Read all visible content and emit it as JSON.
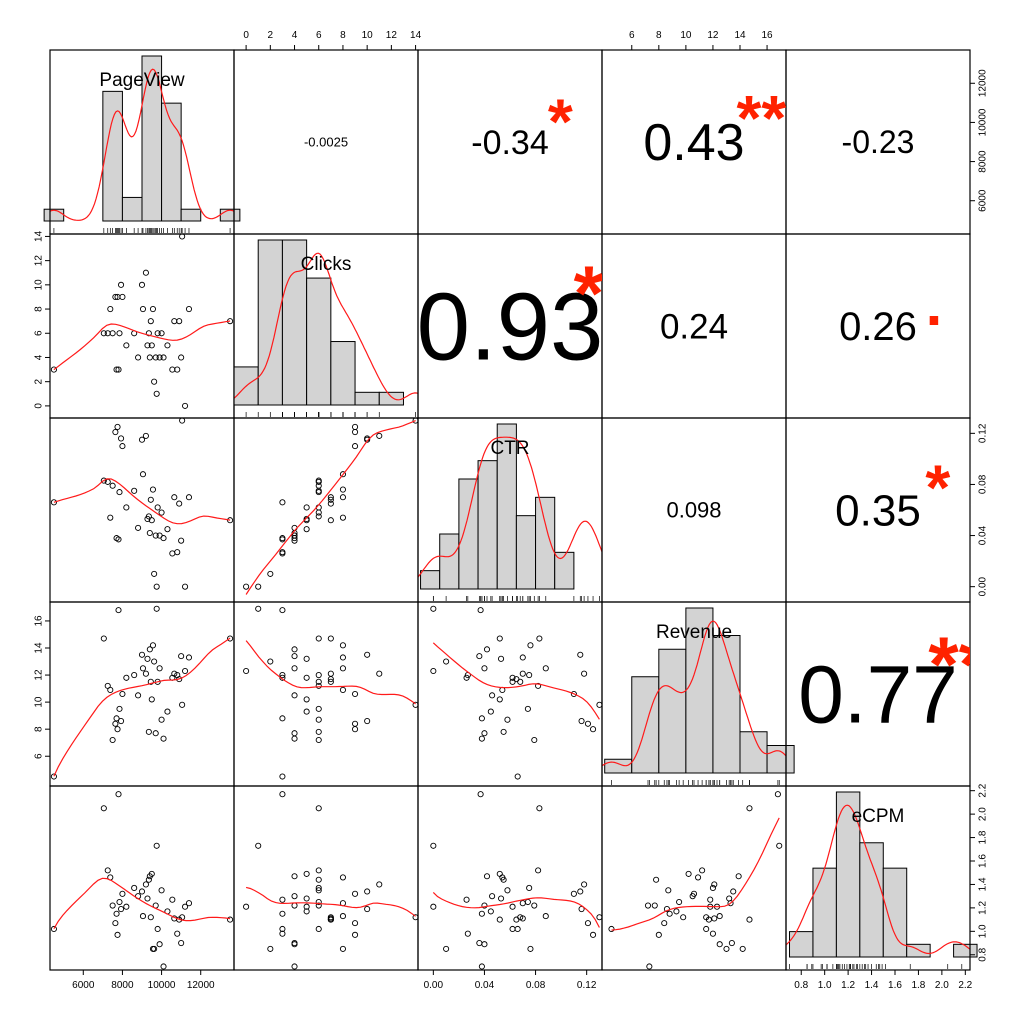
{
  "chart_data": {
    "type": "scatter",
    "title": "",
    "variables": [
      "PageView",
      "Clicks",
      "CTR",
      "Revenue",
      "eCPM"
    ],
    "tick_labels": {
      "PageView": [
        "6000",
        "8000",
        "10000",
        "12000"
      ],
      "Clicks": [
        "0",
        "2",
        "4",
        "6",
        "8",
        "10",
        "12",
        "14"
      ],
      "CTR": [
        "0.00",
        "0.04",
        "0.08",
        "0.12"
      ],
      "Revenue": [
        "6",
        "8",
        "10",
        "12",
        "14",
        "16"
      ],
      "eCPM": [
        "0.8",
        "1.0",
        "1.2",
        "1.4",
        "1.6",
        "1.8",
        "2.0",
        "2.2"
      ],
      "CTR_vertical": [
        "0.00",
        "0.04",
        "0.08",
        "0.12"
      ],
      "eCPM_vertical": [
        "0.8",
        "1.0",
        "1.2",
        "1.4",
        "1.6",
        "1.8",
        "2.0",
        "2.2"
      ],
      "PageView_vertical": [
        "6000",
        "8000",
        "10000",
        "12000"
      ]
    },
    "correlations": [
      {
        "row": 0,
        "col": 1,
        "label": "-0.0025",
        "stars": ""
      },
      {
        "row": 0,
        "col": 2,
        "label": "-0.34",
        "stars": "*"
      },
      {
        "row": 0,
        "col": 3,
        "label": "0.43",
        "stars": "**"
      },
      {
        "row": 0,
        "col": 4,
        "label": "-0.23",
        "stars": ""
      },
      {
        "row": 1,
        "col": 2,
        "label": "0.93",
        "stars": "***"
      },
      {
        "row": 1,
        "col": 3,
        "label": "0.24",
        "stars": ""
      },
      {
        "row": 1,
        "col": 4,
        "label": "0.26",
        "stars": "."
      },
      {
        "row": 2,
        "col": 3,
        "label": "0.098",
        "stars": ""
      },
      {
        "row": 2,
        "col": 4,
        "label": "0.35",
        "stars": "*"
      },
      {
        "row": 3,
        "col": 4,
        "label": "0.77",
        "stars": "***"
      }
    ],
    "histograms": {
      "PageView": {
        "breaks": [
          4000,
          5000,
          6000,
          7000,
          8000,
          9000,
          10000,
          11000,
          12000,
          13000,
          14000
        ],
        "counts": [
          1,
          0,
          0,
          11,
          2,
          14,
          10,
          1,
          0,
          1
        ]
      },
      "Clicks": {
        "breaks": [
          -1,
          1,
          3,
          5,
          7,
          9,
          11,
          13
        ],
        "counts": [
          3,
          13,
          13,
          10,
          5,
          1,
          1
        ]
      },
      "CTR": {
        "breaks": [
          -0.01,
          0.005,
          0.02,
          0.035,
          0.05,
          0.065,
          0.08,
          0.095,
          0.11
        ],
        "counts": [
          1,
          3,
          6,
          7,
          9,
          4,
          5,
          2
        ]
      },
      "Revenue": {
        "breaks": [
          4,
          6,
          8,
          10,
          12,
          14,
          16,
          18
        ],
        "counts": [
          1,
          7,
          9,
          12,
          10,
          3,
          2
        ]
      },
      "eCPM": {
        "breaks": [
          0.7,
          0.9,
          1.1,
          1.3,
          1.5,
          1.7,
          1.9,
          2.1,
          2.3
        ],
        "counts": [
          2,
          7,
          13,
          9,
          7,
          1,
          0,
          1
        ]
      }
    },
    "observations": [
      {
        "PageView": 4500,
        "Clicks": 3,
        "CTR": 0.066,
        "Revenue": 4.5,
        "eCPM": 1.02
      },
      {
        "PageView": 7050,
        "Clicks": 6,
        "CTR": 0.083,
        "Revenue": 14.7,
        "eCPM": 2.05
      },
      {
        "PageView": 7250,
        "Clicks": 6,
        "CTR": 0.082,
        "Revenue": 11.2,
        "eCPM": 1.52
      },
      {
        "PageView": 7380,
        "Clicks": 8,
        "CTR": 0.054,
        "Revenue": 10.9,
        "eCPM": 1.46
      },
      {
        "PageView": 7500,
        "Clicks": 6,
        "CTR": 0.079,
        "Revenue": 7.2,
        "eCPM": 1.22
      },
      {
        "PageView": 7640,
        "Clicks": 9,
        "CTR": 0.121,
        "Revenue": 8.4,
        "eCPM": 1.07
      },
      {
        "PageView": 7700,
        "Clicks": 3,
        "CTR": 0.038,
        "Revenue": 8.8,
        "eCPM": 1.15
      },
      {
        "PageView": 7750,
        "Clicks": 9,
        "CTR": 0.125,
        "Revenue": 8.0,
        "eCPM": 0.97
      },
      {
        "PageView": 7800,
        "Clicks": 3,
        "CTR": 0.037,
        "Revenue": 16.8,
        "eCPM": 2.17
      },
      {
        "PageView": 7850,
        "Clicks": 6,
        "CTR": 0.074,
        "Revenue": 9.5,
        "eCPM": 1.25
      },
      {
        "PageView": 7930,
        "Clicks": 10,
        "CTR": 0.116,
        "Revenue": 8.6,
        "eCPM": 1.19
      },
      {
        "PageView": 8000,
        "Clicks": 9,
        "CTR": 0.11,
        "Revenue": 10.6,
        "eCPM": 1.32
      },
      {
        "PageView": 8200,
        "Clicks": 5,
        "CTR": 0.062,
        "Revenue": 11.8,
        "eCPM": 1.21
      },
      {
        "PageView": 8600,
        "Clicks": 6,
        "CTR": 0.075,
        "Revenue": 12.0,
        "eCPM": 1.37
      },
      {
        "PageView": 8800,
        "Clicks": 4,
        "CTR": 0.046,
        "Revenue": 10.5,
        "eCPM": 1.3
      },
      {
        "PageView": 9000,
        "Clicks": 10,
        "CTR": 0.115,
        "Revenue": 13.5,
        "eCPM": 1.34
      },
      {
        "PageView": 9050,
        "Clicks": 8,
        "CTR": 0.088,
        "Revenue": 12.5,
        "eCPM": 1.13
      },
      {
        "PageView": 9200,
        "Clicks": 11,
        "CTR": 0.118,
        "Revenue": 12.1,
        "eCPM": 1.4
      },
      {
        "PageView": 9280,
        "Clicks": 5,
        "CTR": 0.053,
        "Revenue": 13.2,
        "eCPM": 1.28
      },
      {
        "PageView": 9350,
        "Clicks": 6,
        "CTR": 0.055,
        "Revenue": 7.8,
        "eCPM": 1.44
      },
      {
        "PageView": 9400,
        "Clicks": 4,
        "CTR": 0.042,
        "Revenue": 13.9,
        "eCPM": 1.47
      },
      {
        "PageView": 9450,
        "Clicks": 7,
        "CTR": 0.068,
        "Revenue": 11.5,
        "eCPM": 1.12
      },
      {
        "PageView": 9500,
        "Clicks": 5,
        "CTR": 0.052,
        "Revenue": 10.2,
        "eCPM": 1.49
      },
      {
        "PageView": 9560,
        "Clicks": 8,
        "CTR": 0.076,
        "Revenue": 14.2,
        "eCPM": 0.85
      },
      {
        "PageView": 9620,
        "Clicks": 2,
        "CTR": 0.01,
        "Revenue": 13.0,
        "eCPM": 0.85
      },
      {
        "PageView": 9700,
        "Clicks": 4,
        "CTR": 0.04,
        "Revenue": 7.7,
        "eCPM": 1.22
      },
      {
        "PageView": 9750,
        "Clicks": 1,
        "CTR": 0.0,
        "Revenue": 16.9,
        "eCPM": 1.73
      },
      {
        "PageView": 9800,
        "Clicks": 6,
        "CTR": 0.062,
        "Revenue": 11.5,
        "eCPM": 1.02
      },
      {
        "PageView": 9900,
        "Clicks": 4,
        "CTR": 0.04,
        "Revenue": 12.5,
        "eCPM": 0.89
      },
      {
        "PageView": 10000,
        "Clicks": 6,
        "CTR": 0.058,
        "Revenue": 8.7,
        "eCPM": 1.35
      },
      {
        "PageView": 10100,
        "Clicks": 4,
        "CTR": 0.038,
        "Revenue": 7.3,
        "eCPM": 0.7
      },
      {
        "PageView": 10300,
        "Clicks": 5,
        "CTR": 0.045,
        "Revenue": 9.3,
        "eCPM": 1.17
      },
      {
        "PageView": 10550,
        "Clicks": 3,
        "CTR": 0.026,
        "Revenue": 11.8,
        "eCPM": 1.27
      },
      {
        "PageView": 10650,
        "Clicks": 7,
        "CTR": 0.07,
        "Revenue": 12.1,
        "eCPM": 1.11
      },
      {
        "PageView": 10800,
        "Clicks": 3,
        "CTR": 0.027,
        "Revenue": 12.0,
        "eCPM": 0.98
      },
      {
        "PageView": 10900,
        "Clicks": 7,
        "CTR": 0.065,
        "Revenue": 11.7,
        "eCPM": 1.1
      },
      {
        "PageView": 11000,
        "Clicks": 4,
        "CTR": 0.036,
        "Revenue": 13.4,
        "eCPM": 0.9
      },
      {
        "PageView": 11050,
        "Clicks": 14,
        "CTR": 0.13,
        "Revenue": 9.8,
        "eCPM": 1.12
      },
      {
        "PageView": 11200,
        "Clicks": 0,
        "CTR": 0.0,
        "Revenue": 12.3,
        "eCPM": 1.21
      },
      {
        "PageView": 11400,
        "Clicks": 8,
        "CTR": 0.07,
        "Revenue": 13.3,
        "eCPM": 1.24
      },
      {
        "PageView": 13500,
        "Clicks": 7,
        "CTR": 0.052,
        "Revenue": 14.7,
        "eCPM": 1.1
      }
    ]
  }
}
